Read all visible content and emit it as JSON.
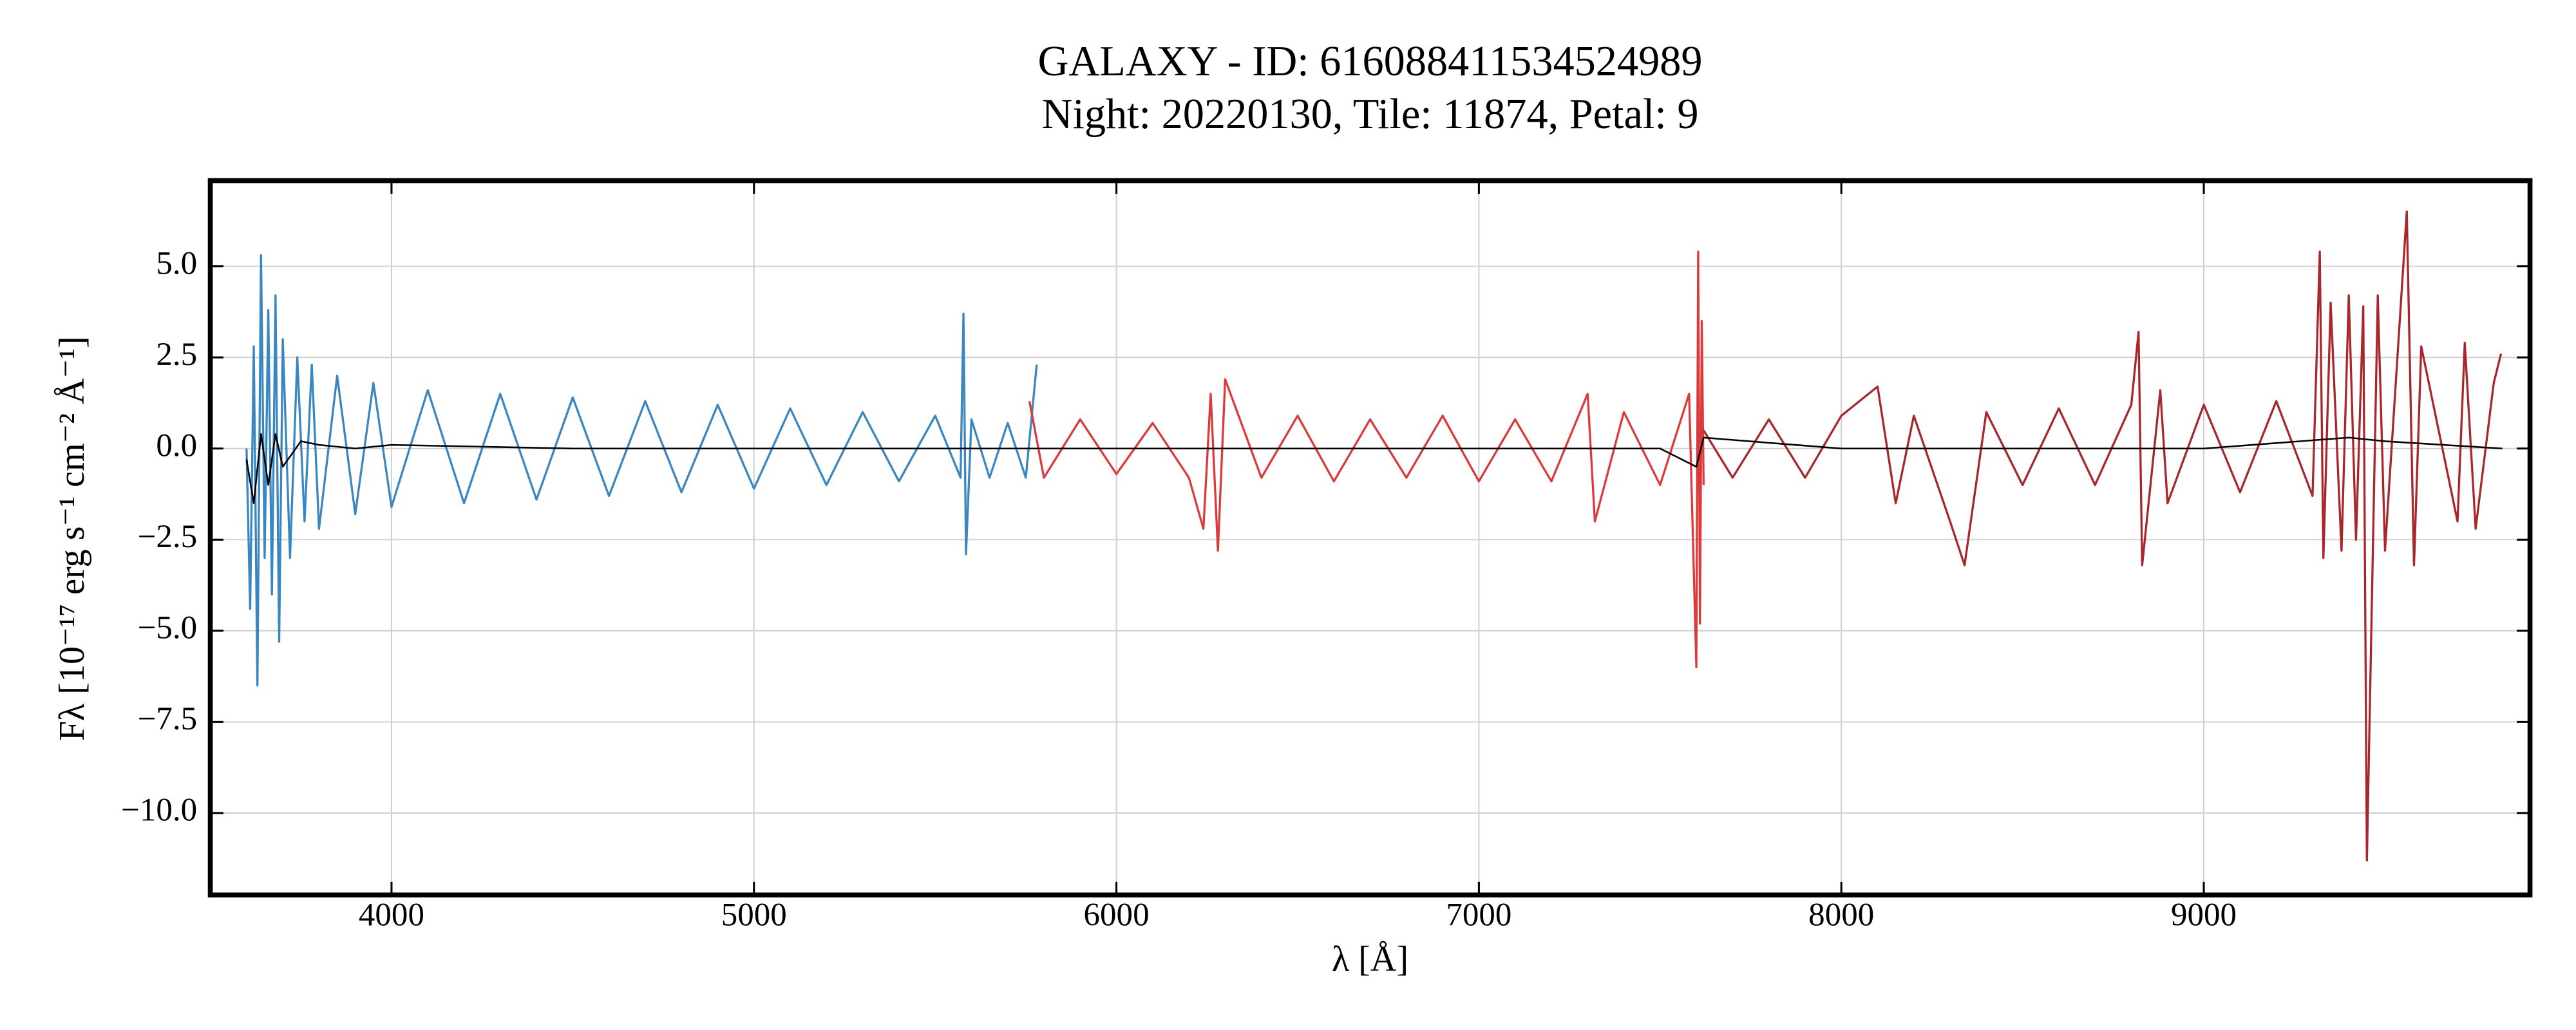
{
  "chart_data": {
    "type": "line",
    "title": "GALAXY - ID: 616088411534524989",
    "subtitle": "Night: 20220130, Tile: 11874, Petal: 9",
    "x_label": "λ [Å]",
    "y_label": "Fλ [10⁻¹⁷ erg s⁻¹ cm⁻² Å⁻¹]",
    "xlim": [
      3500,
      9900
    ],
    "ylim": [
      -12.25,
      7.35
    ],
    "xticks": [
      4000,
      5000,
      6000,
      7000,
      8000,
      9000
    ],
    "yticks": [
      {
        "value": 5,
        "label": "5.0"
      },
      {
        "value": 2.5,
        "label": "2.5"
      },
      {
        "value": 0,
        "label": "0.0"
      },
      {
        "value": -2.5,
        "label": "−2.5"
      },
      {
        "value": -5,
        "label": "−5.0"
      },
      {
        "value": -7.5,
        "label": "−7.5"
      },
      {
        "value": -10,
        "label": "−10.0"
      }
    ],
    "grid": true,
    "series": [
      {
        "color": "#3a86c0",
        "x": [
          3600,
          3610,
          3620,
          3630,
          3640,
          3650,
          3660,
          3670,
          3680,
          3690,
          3700,
          3720,
          3740,
          3760,
          3780,
          3800,
          3850,
          3900,
          3950,
          4000,
          4100,
          4200,
          4300,
          4400,
          4500,
          4600,
          4700,
          4800,
          4900,
          5000,
          5100,
          5200,
          5300,
          5400,
          5500,
          5570,
          5578,
          5585,
          5600,
          5650,
          5700,
          5750,
          5780
        ],
        "values": [
          0,
          -4.4,
          2.8,
          -6.5,
          5.3,
          -3.0,
          3.8,
          -4.0,
          4.2,
          -5.3,
          3.0,
          -3.0,
          2.5,
          -2.0,
          2.3,
          -2.2,
          2.0,
          -1.8,
          1.8,
          -1.6,
          1.6,
          -1.5,
          1.5,
          -1.4,
          1.4,
          -1.3,
          1.3,
          -1.2,
          1.2,
          -1.1,
          1.1,
          -1.0,
          1.0,
          -0.9,
          0.9,
          -0.8,
          3.7,
          -2.9,
          0.8,
          -0.8,
          0.7,
          -0.8,
          2.3
        ]
      },
      {
        "color": "#dc3a3a",
        "x": [
          5760,
          5800,
          5900,
          6000,
          6100,
          6200,
          6240,
          6260,
          6280,
          6300,
          6400,
          6500,
          6600,
          6700,
          6800,
          6900,
          7000,
          7100,
          7200,
          7300,
          7320,
          7400,
          7500,
          7580,
          7600,
          7605,
          7610,
          7615,
          7620
        ],
        "values": [
          1.3,
          -0.8,
          0.8,
          -0.7,
          0.7,
          -0.8,
          -2.2,
          1.5,
          -2.8,
          1.9,
          -0.8,
          0.9,
          -0.9,
          0.8,
          -0.8,
          0.9,
          -0.9,
          0.8,
          -0.9,
          1.5,
          -2.0,
          1.0,
          -1.0,
          1.5,
          -6.0,
          5.4,
          -4.8,
          3.5,
          -1.0
        ]
      },
      {
        "color": "#a8262c",
        "x": [
          7620,
          7700,
          7800,
          7900,
          8000,
          8100,
          8150,
          8200,
          8300,
          8340,
          8400,
          8500,
          8600,
          8700,
          8800,
          8820,
          8830,
          8880,
          8900,
          9000,
          9100,
          9200,
          9300,
          9320,
          9330,
          9350,
          9380,
          9400,
          9420,
          9440,
          9450,
          9480,
          9500,
          9560,
          9580,
          9600,
          9700,
          9720,
          9750,
          9800,
          9820
        ],
        "values": [
          0.5,
          -0.8,
          0.8,
          -0.8,
          0.9,
          1.7,
          -1.5,
          0.9,
          -2.0,
          -3.2,
          1.0,
          -1.0,
          1.1,
          -1.0,
          1.2,
          3.2,
          -3.2,
          1.6,
          -1.5,
          1.2,
          -1.2,
          1.3,
          -1.3,
          5.4,
          -3.0,
          4.0,
          -2.8,
          4.2,
          -2.5,
          3.9,
          -11.3,
          4.2,
          -2.8,
          6.5,
          -3.2,
          2.8,
          -2.0,
          2.9,
          -2.2,
          1.8,
          2.6
        ]
      },
      {
        "color": "#000000",
        "x": [
          3600,
          3620,
          3640,
          3660,
          3680,
          3700,
          3750,
          3800,
          3900,
          4000,
          4500,
          5000,
          5500,
          5800,
          6500,
          7000,
          7500,
          7600,
          7620,
          8000,
          8500,
          9000,
          9400,
          9500,
          9824
        ],
        "values": [
          -0.3,
          -1.5,
          0.4,
          -1.0,
          0.4,
          -0.5,
          0.2,
          0.1,
          0.0,
          0.1,
          0.0,
          0.0,
          0.0,
          0.0,
          0.0,
          0.0,
          0.0,
          -0.5,
          0.3,
          0.0,
          0.0,
          0.0,
          0.3,
          0.2,
          0.0
        ]
      }
    ]
  }
}
